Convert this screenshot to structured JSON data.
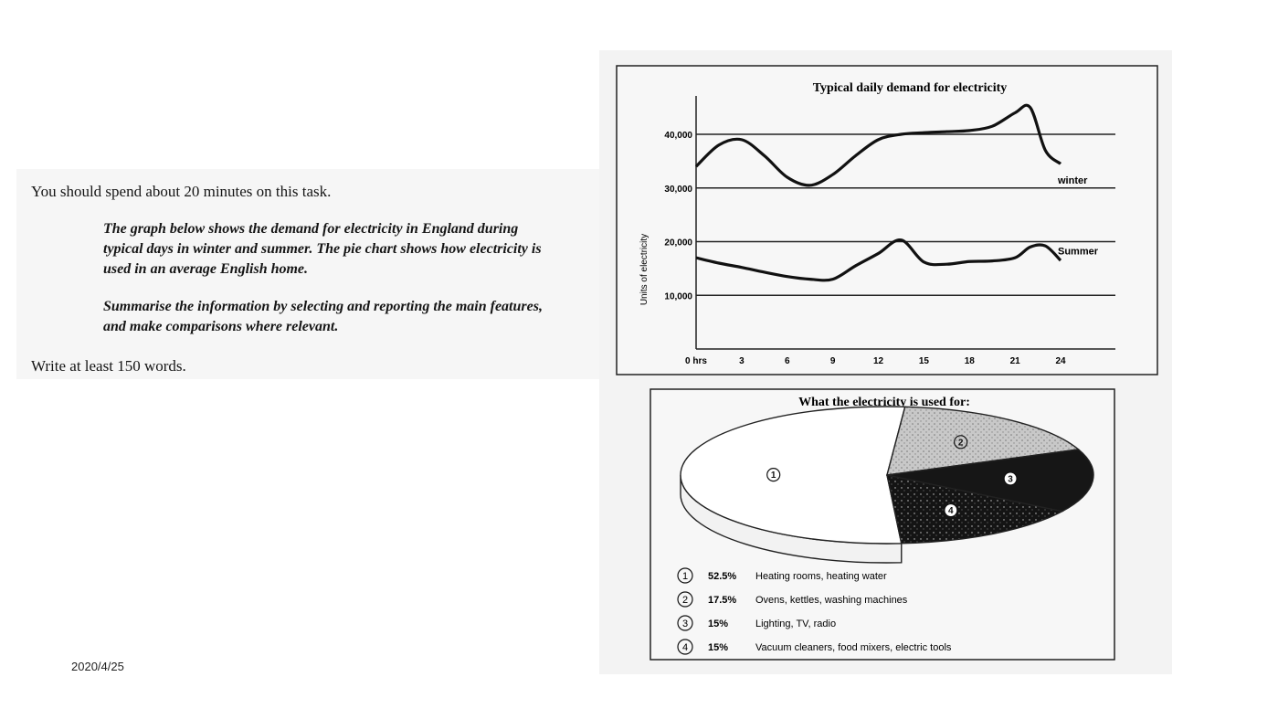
{
  "task": {
    "time_instruction": "You should spend about 20 minutes on this task.",
    "description": "The graph below shows the demand for electricity in England during\ntypical days in winter and summer. The pie chart shows how electricity is\nused in an average English home.",
    "summarise": "Summarise the information by selecting and reporting the main features,\nand make comparisons where relevant.",
    "word_count": "Write at least 150 words."
  },
  "footer": {
    "date": "2020/4/25"
  },
  "chart_data": [
    {
      "type": "line",
      "title": "Typical daily demand for electricity",
      "xlabel": "",
      "ylabel": "Units of electricity",
      "x_tick_labels": [
        "0 hrs",
        "3",
        "6",
        "9",
        "12",
        "15",
        "18",
        "21",
        "24"
      ],
      "y_tick_labels": [
        "10,000",
        "20,000",
        "30,000",
        "40,000"
      ],
      "xlim": [
        0,
        24
      ],
      "ylim": [
        0,
        47000
      ],
      "grid": "horizontal",
      "series": [
        {
          "name": "winter",
          "x": [
            0,
            1.5,
            3,
            4.5,
            6,
            7.5,
            9,
            10.5,
            12,
            13.5,
            15,
            16.5,
            18,
            19.5,
            21,
            22,
            23,
            24
          ],
          "values": [
            34000,
            38000,
            39000,
            36000,
            32000,
            30500,
            32500,
            36000,
            39000,
            40000,
            40300,
            40500,
            40700,
            41500,
            44000,
            45000,
            37000,
            34500
          ]
        },
        {
          "name": "Summer",
          "x": [
            0,
            1.5,
            3,
            4.5,
            6,
            7.5,
            9,
            10.5,
            12,
            13.5,
            15,
            16.5,
            18,
            19.5,
            21,
            22,
            23,
            24
          ],
          "values": [
            17000,
            16000,
            15200,
            14300,
            13500,
            13000,
            13000,
            15500,
            17800,
            20300,
            16200,
            15800,
            16300,
            16400,
            17000,
            19000,
            19200,
            16500
          ]
        }
      ]
    },
    {
      "type": "pie",
      "title": "What the electricity is used for:",
      "slices": [
        {
          "marker": "1",
          "percent_label": "52.5%",
          "value": 52.5,
          "label": "Heating rooms, heating water",
          "fill": "#ffffff"
        },
        {
          "marker": "2",
          "percent_label": "17.5%",
          "value": 17.5,
          "label": "Ovens, kettles, washing machines",
          "fill": "#bdbdbd"
        },
        {
          "marker": "3",
          "percent_label": "15%",
          "value": 15,
          "label": "Lighting, TV, radio",
          "fill": "#111111"
        },
        {
          "marker": "4",
          "percent_label": "15%",
          "value": 15,
          "label": "Vacuum cleaners, food mixers, electric tools",
          "fill": "#1e1e1e"
        }
      ]
    }
  ]
}
